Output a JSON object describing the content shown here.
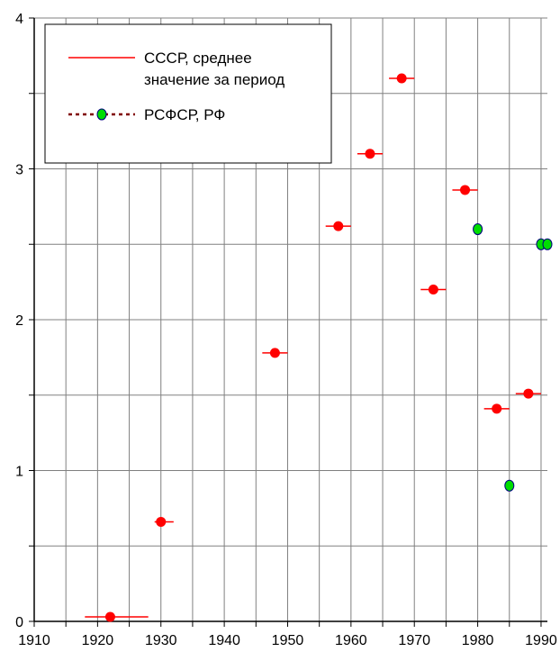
{
  "chart_data": {
    "type": "scatter",
    "title": "",
    "xlabel": "",
    "ylabel": "",
    "xlim": [
      1910,
      1991
    ],
    "ylim": [
      0,
      4
    ],
    "x_ticks": [
      "1910",
      "1920",
      "1930",
      "1940",
      "1950",
      "1960",
      "1970",
      "1980",
      "1990"
    ],
    "y_ticks": [
      "0",
      "1",
      "2",
      "3",
      "4"
    ],
    "grid": true,
    "legend_position": "top-left",
    "series": [
      {
        "name": "СССР, среднее значение за период",
        "legend_lines": [
          "СССР, среднее",
          "значение за период"
        ],
        "color": "#ff0000",
        "marker": "red-dot-with-horizontal-range",
        "points": [
          {
            "x": 1922,
            "y": 0.03,
            "x_from": 1918,
            "x_to": 1928
          },
          {
            "x": 1930,
            "y": 0.66,
            "x_from": 1929,
            "x_to": 1932
          },
          {
            "x": 1948,
            "y": 1.78,
            "x_from": 1946,
            "x_to": 1950
          },
          {
            "x": 1958,
            "y": 2.62,
            "x_from": 1956,
            "x_to": 1960
          },
          {
            "x": 1963,
            "y": 3.1,
            "x_from": 1961,
            "x_to": 1965
          },
          {
            "x": 1968,
            "y": 3.6,
            "x_from": 1966,
            "x_to": 1970
          },
          {
            "x": 1973,
            "y": 2.2,
            "x_from": 1971,
            "x_to": 1975
          },
          {
            "x": 1978,
            "y": 2.86,
            "x_from": 1976,
            "x_to": 1980
          },
          {
            "x": 1983,
            "y": 1.41,
            "x_from": 1981,
            "x_to": 1985
          },
          {
            "x": 1988,
            "y": 1.51,
            "x_from": 1986,
            "x_to": 1990
          }
        ]
      },
      {
        "name": "РСФСР, РФ",
        "color": "#00dd00",
        "line_color": "#800000",
        "marker": "green-dot",
        "points": [
          {
            "x": 1980,
            "y": 2.6
          },
          {
            "x": 1985,
            "y": 0.9
          },
          {
            "x": 1990,
            "y": 2.5
          },
          {
            "x": 1991,
            "y": 2.5
          }
        ]
      }
    ]
  }
}
